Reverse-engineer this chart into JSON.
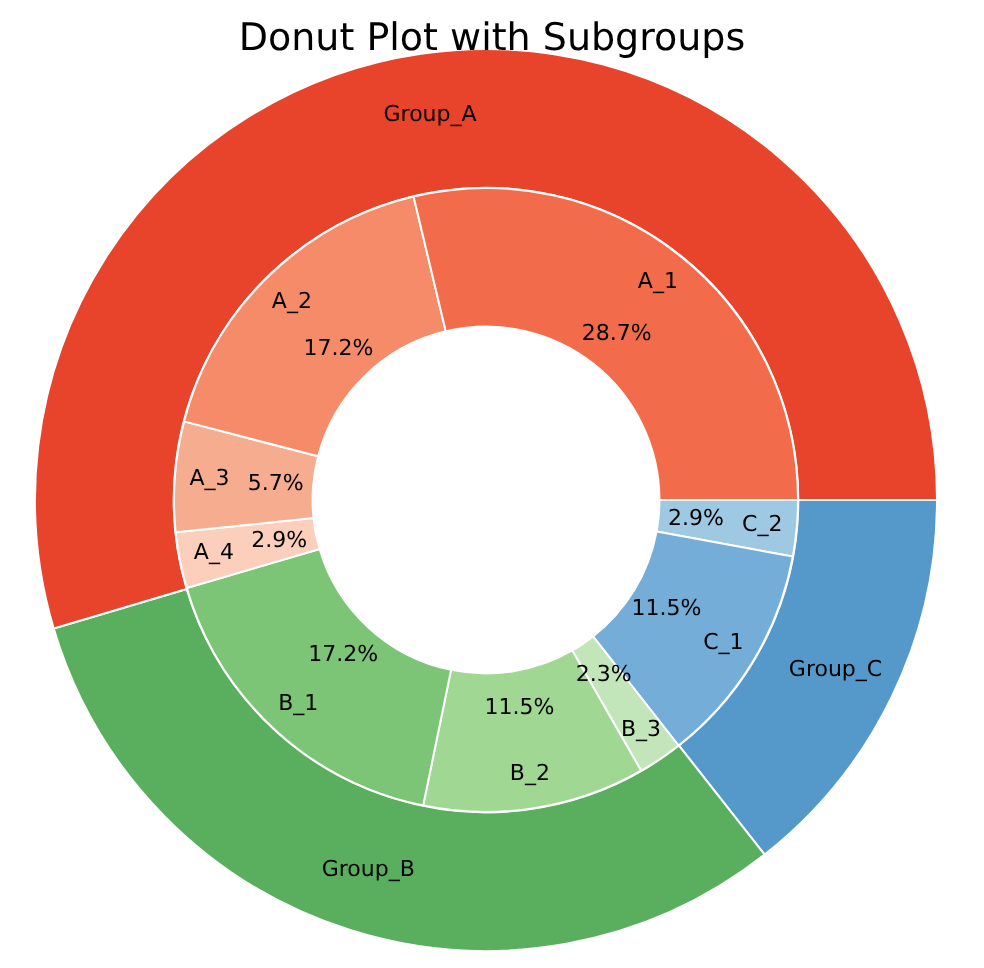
{
  "chart_data": [
    {
      "type": "donut",
      "title": "Donut Plot with Subgroups",
      "legend": false,
      "categories": [
        "Group_A",
        "Group_B",
        "Group_C"
      ],
      "values": [
        54.6,
        31.0,
        14.4
      ],
      "colors": [
        "#e8432b",
        "#5aaf5f",
        "#5599cb"
      ]
    },
    {
      "type": "donut",
      "legend": false,
      "categories": [
        "A_1",
        "A_2",
        "A_3",
        "A_4",
        "B_1",
        "B_2",
        "B_3",
        "C_1",
        "C_2"
      ],
      "values": [
        28.7,
        17.2,
        5.7,
        2.9,
        17.2,
        11.5,
        2.3,
        11.5,
        2.9
      ],
      "value_labels": [
        "28.7%",
        "17.2%",
        "5.7%",
        "2.9%",
        "17.2%",
        "11.5%",
        "2.3%",
        "11.5%",
        "2.9%"
      ],
      "colors": [
        "#f26b4b",
        "#f58b68",
        "#f6ac8f",
        "#fbcfbb",
        "#7dc576",
        "#a0d793",
        "#c2e5ba",
        "#74aed8",
        "#9fc8e3"
      ]
    }
  ]
}
